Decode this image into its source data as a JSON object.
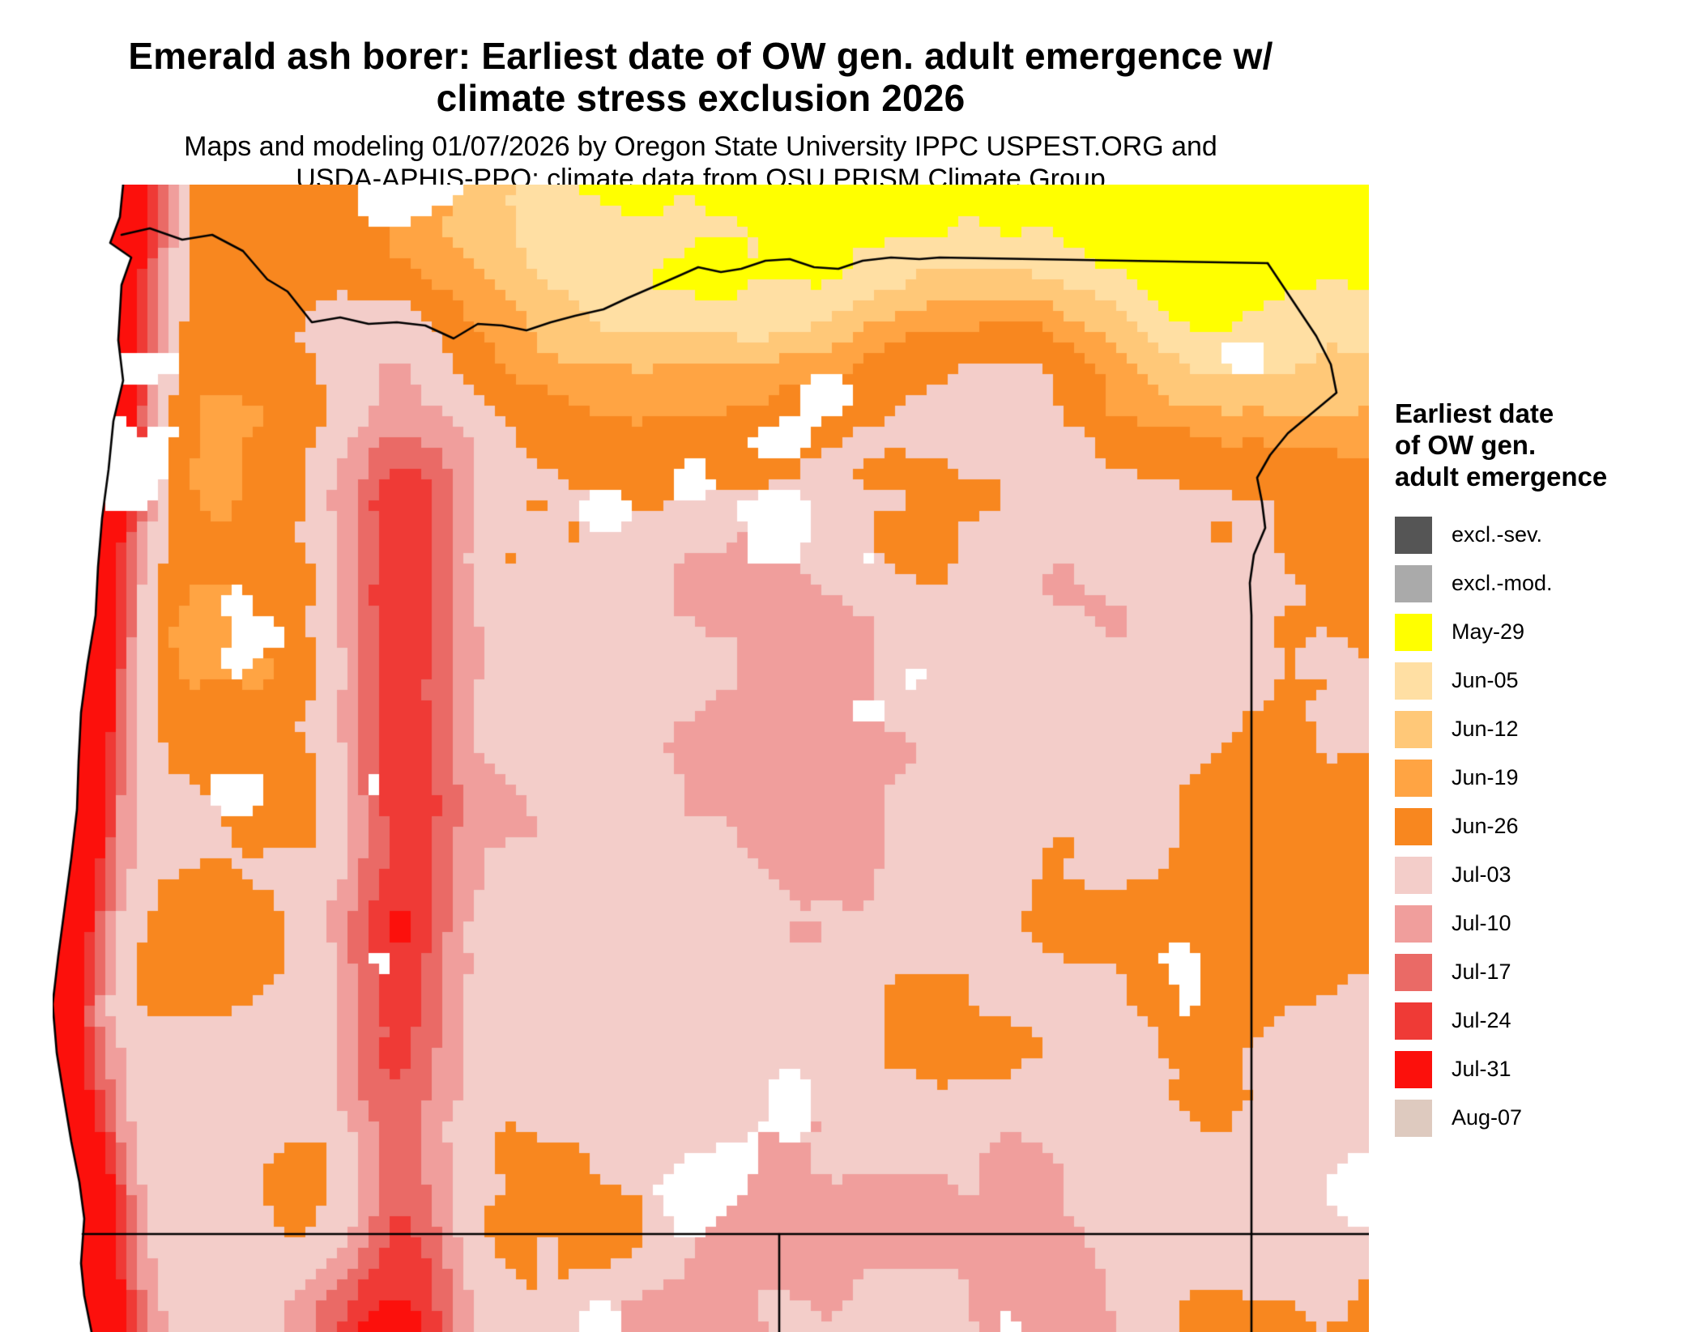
{
  "title": {
    "line1": "Emerald ash borer: Earliest date of OW gen. adult emergence w/",
    "line2": "climate stress exclusion 2026"
  },
  "subtitle": {
    "line1": "Maps and modeling 01/07/2026 by Oregon State University IPPC USPEST.ORG and",
    "line2": "USDA-APHIS-PPQ; climate data from OSU PRISM Climate Group"
  },
  "legend": {
    "title_lines": [
      "Earliest date",
      "of OW gen.",
      "adult emergence"
    ],
    "items": [
      {
        "label": "excl.-sev.",
        "color": "#555555"
      },
      {
        "label": "excl.-mod.",
        "color": "#AAAAAA"
      },
      {
        "label": "May-29",
        "color": "#FFFF00"
      },
      {
        "label": "Jun-05",
        "color": "#FFDFA3"
      },
      {
        "label": "Jun-12",
        "color": "#FFC878"
      },
      {
        "label": "Jun-19",
        "color": "#FFA443"
      },
      {
        "label": "Jun-26",
        "color": "#F8871F"
      },
      {
        "label": "Jul-03",
        "color": "#F3CDC9"
      },
      {
        "label": "Jul-10",
        "color": "#F09E9C"
      },
      {
        "label": "Jul-17",
        "color": "#EA6A66"
      },
      {
        "label": "Jul-24",
        "color": "#EF3A36"
      },
      {
        "label": "Jul-31",
        "color": "#FC100C"
      },
      {
        "label": "Aug-07",
        "color": "#DECABF"
      }
    ]
  },
  "map": {
    "ocean_color": "#FFFFFF",
    "nodata_color": "#FFFFFF",
    "border_color": "#000000"
  }
}
